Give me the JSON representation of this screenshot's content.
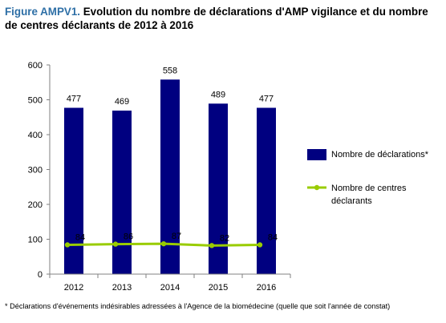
{
  "figure": {
    "label": "Figure AMPV1.",
    "title": "Evolution du nombre de déclarations d'AMP vigilance et du nombre de centres déclarants de 2012 à 2016"
  },
  "footnote": "* Déclarations d'événements indésirables adressées à l'Agence de la biomédecine (quelle que soit l'année de constat)",
  "chart_data": {
    "type": "bar",
    "categories": [
      "2012",
      "2013",
      "2014",
      "2015",
      "2016"
    ],
    "ylim": [
      0,
      600
    ],
    "yticks": [
      0,
      100,
      200,
      300,
      400,
      500,
      600
    ],
    "grid": false,
    "legend_position": "right",
    "series": [
      {
        "name": "Nombre de déclarations*",
        "type": "bar",
        "values": [
          477,
          469,
          558,
          489,
          477
        ],
        "color": "#000080"
      },
      {
        "name": "Nombre de centres déclarants",
        "type": "line",
        "values": [
          84,
          86,
          87,
          82,
          84
        ],
        "color": "#99cc00"
      }
    ]
  }
}
